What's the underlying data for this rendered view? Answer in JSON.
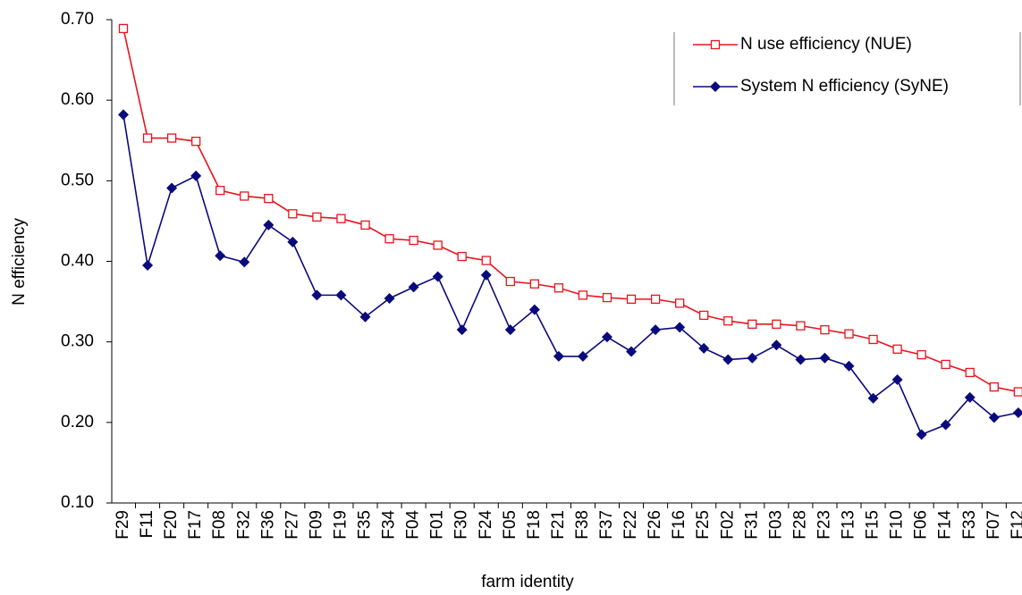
{
  "chart_data": {
    "type": "line",
    "y_label": "N efficiency",
    "x_label": "farm identity",
    "categories": [
      "F29",
      "F11",
      "F20",
      "F17",
      "F08",
      "F32",
      "F36",
      "F27",
      "F09",
      "F19",
      "F35",
      "F34",
      "F04",
      "F01",
      "F30",
      "F24",
      "F05",
      "F18",
      "F21",
      "F38",
      "F37",
      "F22",
      "F26",
      "F16",
      "F25",
      "F02",
      "F31",
      "F03",
      "F28",
      "F23",
      "F13",
      "F15",
      "F10",
      "F06",
      "F14",
      "F33",
      "F07",
      "F12"
    ],
    "series": [
      {
        "name": "N use efficiency (NUE)",
        "color": "#e8141c",
        "marker": "square",
        "values": [
          0.689,
          0.553,
          0.553,
          0.549,
          0.488,
          0.481,
          0.478,
          0.459,
          0.455,
          0.453,
          0.445,
          0.428,
          0.426,
          0.42,
          0.406,
          0.401,
          0.375,
          0.372,
          0.367,
          0.358,
          0.355,
          0.353,
          0.353,
          0.348,
          0.333,
          0.326,
          0.322,
          0.322,
          0.32,
          0.315,
          0.31,
          0.303,
          0.291,
          0.284,
          0.272,
          0.262,
          0.244,
          0.238
        ]
      },
      {
        "name": "System N efficiency (SyNE)",
        "color": "#0a0a7c",
        "marker": "diamond",
        "values": [
          0.582,
          0.395,
          0.491,
          0.506,
          0.407,
          0.399,
          0.445,
          0.424,
          0.358,
          0.358,
          0.331,
          0.354,
          0.368,
          0.381,
          0.315,
          0.383,
          0.315,
          0.34,
          0.282,
          0.282,
          0.306,
          0.288,
          0.315,
          0.318,
          0.292,
          0.278,
          0.28,
          0.296,
          0.278,
          0.28,
          0.27,
          0.23,
          0.253,
          0.185,
          0.197,
          0.231,
          0.206,
          0.212
        ]
      }
    ],
    "ylim": [
      0.1,
      0.7
    ],
    "yticks": [
      {
        "value": 0.1,
        "label": "0.10"
      },
      {
        "value": 0.2,
        "label": "0.20"
      },
      {
        "value": 0.3,
        "label": "0.30"
      },
      {
        "value": 0.4,
        "label": "0.40"
      },
      {
        "value": 0.5,
        "label": "0.50"
      },
      {
        "value": 0.6,
        "label": "0.60"
      },
      {
        "value": 0.7,
        "label": "0.70"
      }
    ],
    "grid": false
  }
}
